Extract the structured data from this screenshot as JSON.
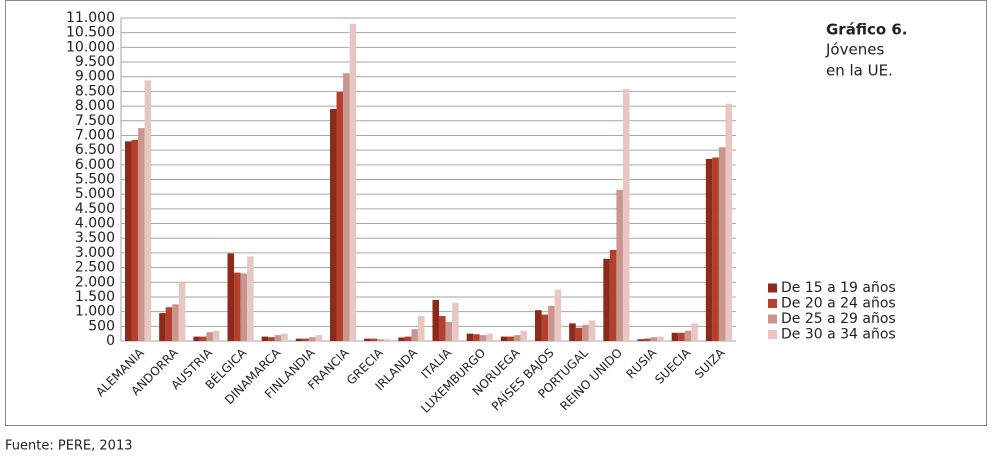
{
  "chart_data": {
    "type": "bar",
    "title": "Gráfico 6.",
    "subtitle": [
      "Jóvenes",
      "en la UE."
    ],
    "source": "Fuente: PERE, 2013",
    "categories": [
      "ALEMANIA",
      "ANDORRA",
      "AUSTRIA",
      "BÉLGICA",
      "DINAMARCA",
      "FINLANDIA",
      "FRANCIA",
      "GRECIA",
      "IRLANDA",
      "ITALIA",
      "LUXEMBURGO",
      "NORUEGA",
      "PAÍSES BAJOS",
      "PORTUGAL",
      "REINO UNIDO",
      "RUSIA",
      "SUECIA",
      "SUIZA"
    ],
    "series": [
      {
        "name": "De 15 a 19 años",
        "color": "#8c2a1c",
        "values": [
          6800,
          950,
          150,
          2980,
          150,
          80,
          7900,
          80,
          120,
          1400,
          250,
          150,
          1050,
          600,
          2800,
          60,
          280,
          6200
        ]
      },
      {
        "name": "De 20 a 24 años",
        "color": "#b5402d",
        "values": [
          6850,
          1150,
          150,
          2330,
          130,
          80,
          8480,
          80,
          150,
          850,
          230,
          150,
          900,
          450,
          3100,
          80,
          280,
          6250
        ]
      },
      {
        "name": "De 25 a 29 años",
        "color": "#c9968f",
        "values": [
          7250,
          1250,
          300,
          2300,
          200,
          130,
          9120,
          60,
          400,
          650,
          200,
          200,
          1200,
          550,
          5150,
          130,
          350,
          6600
        ]
      },
      {
        "name": "De 30 a 34 años",
        "color": "#e8c7c3",
        "values": [
          8880,
          2000,
          350,
          2880,
          250,
          200,
          10800,
          60,
          850,
          1300,
          250,
          350,
          1750,
          700,
          8580,
          150,
          600,
          8080
        ]
      }
    ],
    "ylim": [
      0,
      11000
    ],
    "yticks": [
      0,
      500,
      {
        "value": 1000,
        "label": "1.000"
      },
      {
        "value": 1500,
        "label": "1.500"
      },
      {
        "value": 2000,
        "label": "2.000"
      },
      {
        "value": 2500,
        "label": "2.500"
      },
      {
        "value": 3000,
        "label": "3.000"
      },
      {
        "value": 3500,
        "label": "3.500"
      },
      {
        "value": 4000,
        "label": "4.000"
      },
      {
        "value": 4500,
        "label": "4.500"
      },
      {
        "value": 5000,
        "label": "5.000"
      },
      {
        "value": 5500,
        "label": "5.500"
      },
      {
        "value": 6000,
        "label": "6.000"
      },
      {
        "value": 6500,
        "label": "6.500"
      },
      {
        "value": 7000,
        "label": "7.000"
      },
      {
        "value": 7500,
        "label": "7.500"
      },
      {
        "value": 8000,
        "label": "8.000"
      },
      {
        "value": 8500,
        "label": "8.500"
      },
      {
        "value": 9000,
        "label": "9.000"
      },
      {
        "value": 9500,
        "label": "9.500"
      },
      {
        "value": 10000,
        "label": "10.000"
      },
      {
        "value": 10500,
        "label": "10.500"
      },
      {
        "value": 11000,
        "label": "11.000"
      }
    ],
    "grid": true,
    "legend": "right"
  }
}
